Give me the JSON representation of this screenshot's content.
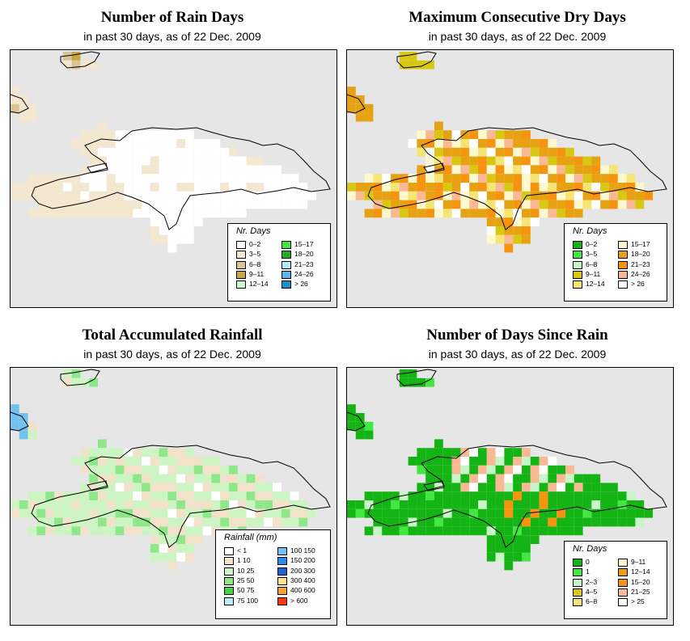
{
  "panels": {
    "rain_days": {
      "title": "Number of Rain Days",
      "subtitle": "in past 30 days, as of  22 Dec. 2009",
      "legend_title": "Nr. Days",
      "legend": [
        {
          "label": "0–2",
          "color": "#ffffff"
        },
        {
          "label": "3–5",
          "color": "#f3e7cf"
        },
        {
          "label": "6–8",
          "color": "#d9c493"
        },
        {
          "label": "9–11",
          "color": "#c9a63f"
        },
        {
          "label": "12–14",
          "color": "#d1f7cd"
        },
        {
          "label": "15–17",
          "color": "#3ce83c"
        },
        {
          "label": "18–20",
          "color": "#22b022"
        },
        {
          "label": "21–23",
          "color": "#b3ecf4"
        },
        {
          "label": "24–26",
          "color": "#5cb8ea"
        },
        {
          "label": "> 26",
          "color": "#1a8fd0"
        }
      ]
    },
    "dry_days": {
      "title": "Maximum Consecutive Dry Days",
      "subtitle": "in past 30 days, as of  22 Dec. 2009",
      "legend_title": "Nr. Days",
      "legend": [
        {
          "label": "0–2",
          "color": "#15b415"
        },
        {
          "label": "3–5",
          "color": "#42e742"
        },
        {
          "label": "6–8",
          "color": "#c8f6c8"
        },
        {
          "label": "9–11",
          "color": "#d8c813"
        },
        {
          "label": "12–14",
          "color": "#f6e574"
        },
        {
          "label": "15–17",
          "color": "#fdf8cd"
        },
        {
          "label": "18–20",
          "color": "#e7a213"
        },
        {
          "label": "21–23",
          "color": "#f7940f"
        },
        {
          "label": "24–26",
          "color": "#fab995"
        },
        {
          "label": "> 26",
          "color": "#ffffff"
        }
      ]
    },
    "rainfall": {
      "title": "Total Accumulated Rainfall",
      "subtitle": "in past 30 days, as of  22 Dec. 2009",
      "legend_title": "Rainfall (mm)",
      "legend": [
        {
          "label": "< 1",
          "color": "#ffffff"
        },
        {
          "label": "1    10",
          "color": "#f2e2c9"
        },
        {
          "label": "10    25",
          "color": "#cdf5c3"
        },
        {
          "label": "25    50",
          "color": "#8ee88a"
        },
        {
          "label": "50    75",
          "color": "#44d444"
        },
        {
          "label": "75  100",
          "color": "#bdeef6"
        },
        {
          "label": "100  150",
          "color": "#74c1ef"
        },
        {
          "label": "150  200",
          "color": "#2d8ee6"
        },
        {
          "label": "200  300",
          "color": "#1a63d9"
        },
        {
          "label": "300  400",
          "color": "#fde38a"
        },
        {
          "label": "400  600",
          "color": "#fca32c"
        },
        {
          "label": "> 600",
          "color": "#fb3a12"
        }
      ]
    },
    "since_rain": {
      "title": "Number of Days Since Rain",
      "subtitle": "in past 30 days, as of  22 Dec. 2009",
      "legend_title": "Nr. Days",
      "legend": [
        {
          "label": "0",
          "color": "#15b415"
        },
        {
          "label": "1",
          "color": "#42e742"
        },
        {
          "label": "2–3",
          "color": "#c8f6c8"
        },
        {
          "label": "4–5",
          "color": "#d8c813"
        },
        {
          "label": "6–8",
          "color": "#f6e574"
        },
        {
          "label": "9–11",
          "color": "#fdf8cd"
        },
        {
          "label": "12–14",
          "color": "#e7a213"
        },
        {
          "label": "15–20",
          "color": "#f7940f"
        },
        {
          "label": "21–25",
          "color": "#fab995"
        },
        {
          "label": "> 25",
          "color": "#ffffff"
        }
      ]
    }
  },
  "maps": {
    "rain_days": {
      "colors": {
        "W": "#ffffff",
        "L": "#f3e7cf",
        "M": "#d9c493",
        "D": "#c9a63f"
      },
      "rows": [
        "......MD.....................................",
        "......LMLL...................................",
        ".............................................",
        ".............................................",
        "L............................................",
        "LL...........................................",
        "MLL..........................................",
        ".LL..........................................",
        "..........L..........................",
        "........LLLLWWWWWWWWW................",
        ".......LLLLLWWWWWWWLWWWW.............",
        "........LLWWWWWWWWWWWWWWWL...........",
        ".........LLWWWWWLWWWWWWWWWWLL........",
        "........LWWWWWWLLWWWWWWWWWWWWWW......",
        "..LLLLLLWWWLWWWWWWWWWWWWWWWWWWWWW....",
        "LLLLLLWLLWWLLWWWLWWLLWWWLWWLLWWWWW..",
        "LLLLLLLLWLLLLWWWWWWWWWWWWWWWWWWWWWW.",
        "...LLLLLLLLLLLLWWWWWWWWWWWWWWWWWWW..",
        "..LLLLLLLLLLLLWWWWWWWWWWWWW.........",
        "................WWWWWW..............",
        "................LWWWW...............",
        "................LLWWW...............",
        "..................W.................."
      ]
    }
  }
}
